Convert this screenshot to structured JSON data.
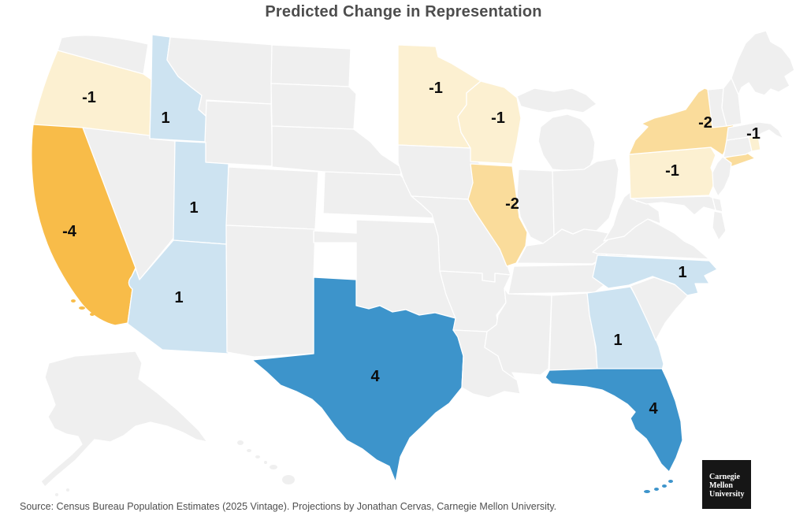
{
  "title": "Predicted Change in Representation",
  "source": "Source: Census Bureau Population Estimates (2025 Vintage). Projections by Jonathan Cervas, Carnegie Mellon University.",
  "logo": {
    "lines": [
      "Carnegie",
      "Mellon",
      "University"
    ]
  },
  "colors": {
    "background": "#FFFFFF",
    "neutral_state": "#EFEFEF",
    "state_border": "#FFFFFF",
    "title_color": "#4D4D4D",
    "label_color": "#0D0D0D",
    "source_color": "#4F4F4F",
    "logo_bg": "#161616",
    "logo_fg": "#FFFFFF"
  },
  "chart_data": {
    "type": "choropleth",
    "title": "Predicted Change in Representation",
    "region": "United States",
    "unit": "seats",
    "states": [
      {
        "state": "Oregon",
        "value": -1
      },
      {
        "state": "California",
        "value": -4
      },
      {
        "state": "Idaho",
        "value": 1
      },
      {
        "state": "Utah",
        "value": 1
      },
      {
        "state": "Arizona",
        "value": 1
      },
      {
        "state": "Texas",
        "value": 4
      },
      {
        "state": "Minnesota",
        "value": -1
      },
      {
        "state": "Wisconsin",
        "value": -1
      },
      {
        "state": "Illinois",
        "value": -2
      },
      {
        "state": "New York",
        "value": -2
      },
      {
        "state": "Pennsylvania",
        "value": -1
      },
      {
        "state": "Rhode Island",
        "value": -1
      },
      {
        "state": "North Carolina",
        "value": 1
      },
      {
        "state": "Georgia",
        "value": 1
      },
      {
        "state": "Florida",
        "value": 4
      }
    ],
    "other_states_value": 0,
    "color_scale": {
      "-4": "#F8BC49",
      "-2": "#FADC9B",
      "-1": "#FCF0D1",
      "0": "#EFEFEF",
      "1": "#CDE3F1",
      "4": "#3D94CB"
    },
    "legend": "none"
  }
}
